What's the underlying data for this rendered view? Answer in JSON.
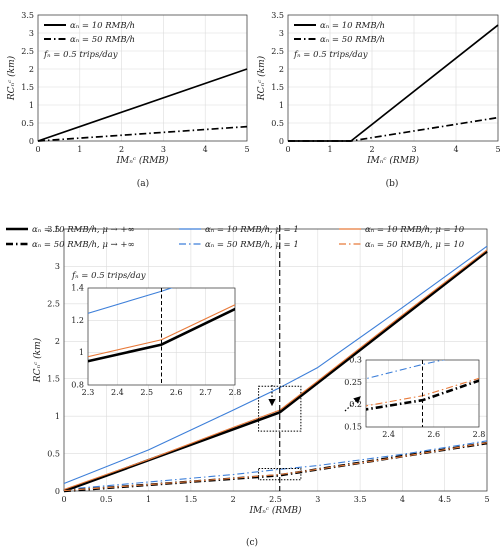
{
  "chart_data": [
    {
      "id": "a",
      "type": "line",
      "caption": "(a)",
      "xlabel": "IMₙᶜ (RMB)",
      "ylabel": "RCₙᶜ (km)",
      "xlim": [
        0,
        5
      ],
      "ylim": [
        0,
        3.5
      ],
      "xticks": [
        0,
        1,
        2,
        3,
        4,
        5
      ],
      "yticks": [
        0,
        0.5,
        1,
        1.5,
        2,
        2.5,
        3,
        3.5
      ],
      "grid": true,
      "legend_position": "top-left",
      "annotation": "fₙ = 0.5 trips/day",
      "series": [
        {
          "name": "αₙ = 10 RMB/h",
          "style": "solid",
          "color": "#000000",
          "x": [
            0,
            5
          ],
          "y": [
            0,
            2.0
          ]
        },
        {
          "name": "αₙ = 50 RMB/h",
          "style": "dashdot",
          "color": "#000000",
          "x": [
            0,
            5
          ],
          "y": [
            0,
            0.4
          ]
        }
      ]
    },
    {
      "id": "b",
      "type": "line",
      "caption": "(b)",
      "xlabel": "IMₙᶜ (RMB)",
      "ylabel": "RCₙᶜ (km)",
      "xlim": [
        0,
        5
      ],
      "ylim": [
        0,
        3.5
      ],
      "xticks": [
        0,
        1,
        2,
        3,
        4,
        5
      ],
      "yticks": [
        0,
        0.5,
        1,
        1.5,
        2,
        2.5,
        3,
        3.5
      ],
      "grid": true,
      "legend_position": "top-left",
      "annotation": "fₙ = 0.5 trips/day",
      "series": [
        {
          "name": "αₙ = 10 RMB/h",
          "style": "solid",
          "color": "#000000",
          "x": [
            0,
            1.5,
            5
          ],
          "y": [
            0,
            0,
            3.22
          ]
        },
        {
          "name": "αₙ = 50 RMB/h",
          "style": "dashdot",
          "color": "#000000",
          "x": [
            0,
            1.5,
            5
          ],
          "y": [
            0,
            0,
            0.65
          ]
        }
      ]
    },
    {
      "id": "c",
      "type": "line",
      "caption": "(c)",
      "xlabel": "IMₙᶜ (RMB)",
      "ylabel": "RCₙᶜ (km)",
      "xlim": [
        0,
        5
      ],
      "ylim": [
        0,
        3.5
      ],
      "xticks": [
        0,
        0.5,
        1,
        1.5,
        2,
        2.5,
        3,
        3.5,
        4,
        4.5,
        5
      ],
      "yticks": [
        0,
        0.5,
        1,
        1.5,
        2,
        2.5,
        3,
        3.5
      ],
      "grid": true,
      "legend_position": "top",
      "annotation": "fₙ = 0.5 trips/day",
      "vline_x": 2.55,
      "series": [
        {
          "name": "αₙ = 10 RMB/h, μ → +∞",
          "style": "solid",
          "width": 2.6,
          "color": "#000000",
          "x": [
            0,
            2.55,
            5
          ],
          "y": [
            0,
            1.05,
            3.2
          ]
        },
        {
          "name": "αₙ = 50 RMB/h, μ → +∞",
          "style": "dashdot",
          "width": 2.6,
          "color": "#000000",
          "x": [
            0,
            2.55,
            5
          ],
          "y": [
            0,
            0.21,
            0.64
          ]
        },
        {
          "name": "αₙ = 10 RMB/h, μ = 1",
          "style": "solid",
          "width": 1.1,
          "color": "#3d7fd9",
          "x": [
            0,
            1,
            2,
            2.55,
            3,
            4,
            5
          ],
          "y": [
            0.1,
            0.55,
            1.08,
            1.38,
            1.65,
            2.45,
            3.27
          ]
        },
        {
          "name": "αₙ = 50 RMB/h, μ = 1",
          "style": "dashdot",
          "width": 1.1,
          "color": "#3d7fd9",
          "x": [
            0,
            1,
            2,
            2.55,
            3,
            4,
            5
          ],
          "y": [
            0.02,
            0.12,
            0.22,
            0.29,
            0.34,
            0.49,
            0.67
          ]
        },
        {
          "name": "αₙ = 10 RMB/h, μ = 10",
          "style": "solid",
          "width": 1.1,
          "color": "#e87a3a",
          "x": [
            0,
            1,
            2,
            2.55,
            3,
            4,
            5
          ],
          "y": [
            0.02,
            0.42,
            0.85,
            1.08,
            1.47,
            2.35,
            3.22
          ]
        },
        {
          "name": "αₙ = 50 RMB/h, μ = 10",
          "style": "dashdot",
          "width": 1.1,
          "color": "#e87a3a",
          "x": [
            0,
            1,
            2,
            2.55,
            3,
            4,
            5
          ],
          "y": [
            0.005,
            0.085,
            0.17,
            0.22,
            0.29,
            0.46,
            0.645
          ]
        }
      ],
      "insets": [
        {
          "xlim": [
            2.3,
            2.8
          ],
          "ylim": [
            0.8,
            1.4
          ],
          "xticks": [
            2.3,
            2.4,
            2.5,
            2.6,
            2.7,
            2.8
          ],
          "yticks": [
            0.8,
            1,
            1.2,
            1.4
          ],
          "vline_x": 2.55,
          "source_box": {
            "x": [
              2.3,
              2.8
            ],
            "y": [
              0.8,
              1.4
            ]
          },
          "series_refs": [
            0,
            2,
            4
          ]
        },
        {
          "xlim": [
            2.3,
            2.8
          ],
          "ylim": [
            0.15,
            0.3
          ],
          "xticks": [
            2.4,
            2.6,
            2.8
          ],
          "yticks": [
            0.15,
            0.2,
            0.25,
            0.3
          ],
          "vline_x": 2.55,
          "source_box": {
            "x": [
              2.3,
              2.8
            ],
            "y": [
              0.15,
              0.3
            ]
          },
          "series_refs": [
            1,
            3,
            5
          ]
        }
      ]
    }
  ]
}
